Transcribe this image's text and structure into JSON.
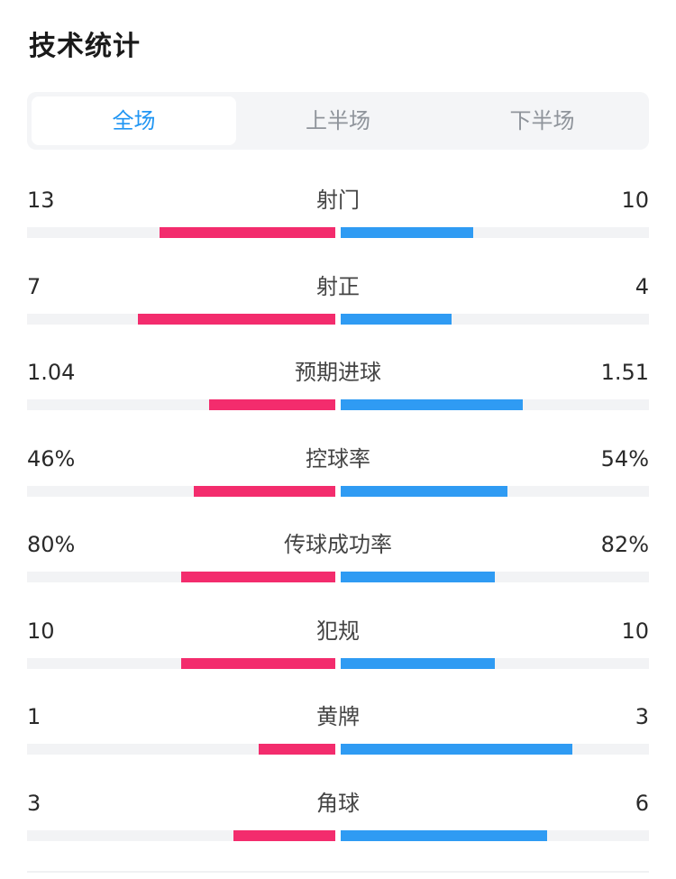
{
  "header": {
    "title": "技术统计"
  },
  "tabs": [
    {
      "label": "全场",
      "active": true
    },
    {
      "label": "上半场",
      "active": false
    },
    {
      "label": "下半场",
      "active": false
    }
  ],
  "colors": {
    "home": "#f32c6d",
    "away": "#2f9bf3",
    "active_tab": "#2196f3"
  },
  "stats": [
    {
      "label": "射门",
      "home": "13",
      "away": "10",
      "home_fill": 0.57,
      "away_fill": 0.43
    },
    {
      "label": "射正",
      "home": "7",
      "away": "4",
      "home_fill": 0.64,
      "away_fill": 0.36
    },
    {
      "label": "预期进球",
      "home": "1.04",
      "away": "1.51",
      "home_fill": 0.41,
      "away_fill": 0.59
    },
    {
      "label": "控球率",
      "home": "46%",
      "away": "54%",
      "home_fill": 0.46,
      "away_fill": 0.54
    },
    {
      "label": "传球成功率",
      "home": "80%",
      "away": "82%",
      "home_fill": 0.5,
      "away_fill": 0.5
    },
    {
      "label": "犯规",
      "home": "10",
      "away": "10",
      "home_fill": 0.5,
      "away_fill": 0.5
    },
    {
      "label": "黄牌",
      "home": "1",
      "away": "3",
      "home_fill": 0.25,
      "away_fill": 0.75
    },
    {
      "label": "角球",
      "home": "3",
      "away": "6",
      "home_fill": 0.33,
      "away_fill": 0.67
    }
  ]
}
